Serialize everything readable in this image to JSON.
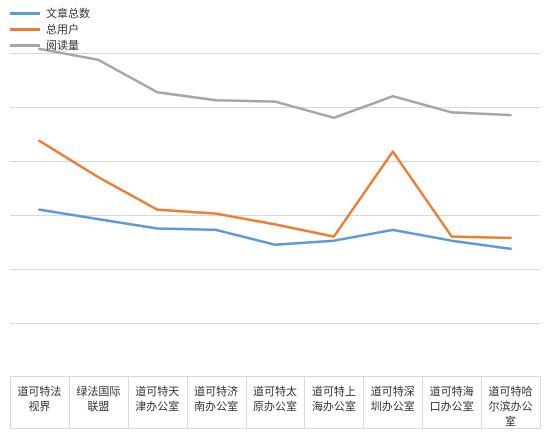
{
  "chart_data": {
    "type": "line",
    "categories": [
      "道可特法视界",
      "绿法国际联盟",
      "道可特天津办公室",
      "道可特济南办公室",
      "道可特太原办公室",
      "道可特上海办公室",
      "道可特深圳办公室",
      "道可特海口办公室",
      "道可特哈尔滨办公室"
    ],
    "category_lines": [
      [
        "道可特法",
        "视界"
      ],
      [
        "绿法国际",
        "联盟"
      ],
      [
        "道可特天",
        "津办公室"
      ],
      [
        "道可特济",
        "南办公室"
      ],
      [
        "道可特太",
        "原办公室"
      ],
      [
        "道可特上",
        "海办公室"
      ],
      [
        "道可特深",
        "圳办公室"
      ],
      [
        "道可特海",
        "口办公室"
      ],
      [
        "道可特哈",
        "尔滨办公",
        "室"
      ]
    ],
    "series": [
      {
        "name": "文章总数",
        "color": "#5b9bd5",
        "values": [
          0.34,
          0.27,
          0.2,
          0.19,
          0.08,
          0.11,
          0.19,
          0.11,
          0.05
        ]
      },
      {
        "name": "总用户",
        "color": "#ed7d31",
        "values": [
          0.85,
          0.58,
          0.34,
          0.31,
          0.23,
          0.14,
          0.77,
          0.14,
          0.13
        ]
      },
      {
        "name": "阅读量",
        "color": "#a5a5a5",
        "values": [
          1.53,
          1.45,
          1.21,
          1.15,
          1.14,
          1.02,
          1.18,
          1.06,
          1.04
        ]
      }
    ],
    "ylim": [
      -0.5,
      1.5
    ],
    "grid": true,
    "legend_position": "top-left"
  }
}
